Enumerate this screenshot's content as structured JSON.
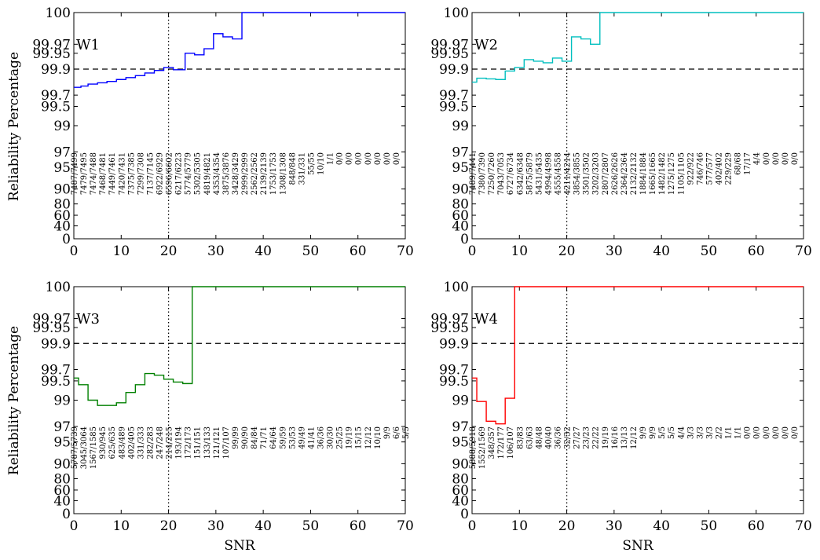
{
  "figure": {
    "ylabel": "Reliability Percentage",
    "xlabel": "SNR",
    "reference_line_y": 99.9,
    "reference_line_x": 20,
    "reference_line_style": "dashed (y), dotted (x)"
  },
  "chart_data": [
    {
      "type": "line",
      "label": "W1",
      "color": "#0000ff",
      "xlim": [
        0,
        70
      ],
      "ylim": [
        0,
        100
      ],
      "y_scale": "reliability (non-linear)",
      "y_ticks": [
        "0",
        "40",
        "60",
        "80",
        "90",
        "95",
        "97",
        "99",
        "99.5",
        "99.7",
        "99.9",
        "99.95",
        "99.97",
        "100"
      ],
      "x_ticks": [
        "0",
        "10",
        "20",
        "30",
        "40",
        "50",
        "60",
        "70"
      ],
      "x": [
        0,
        1.5,
        3,
        5,
        7,
        9,
        11,
        13,
        15,
        17,
        19,
        21,
        23.5,
        25.5,
        27.5,
        29.5,
        31.5,
        33.5,
        35.5,
        70
      ],
      "y": [
        99.76,
        99.77,
        99.785,
        99.795,
        99.805,
        99.82,
        99.835,
        99.85,
        99.87,
        99.89,
        99.905,
        99.895,
        99.95,
        99.945,
        99.96,
        99.98,
        99.977,
        99.975,
        100,
        100
      ],
      "annotations": [
        "7487/7499",
        "7479/7495",
        "7474/7488",
        "7468/7481",
        "7449/7461",
        "7420/7431",
        "7375/7385",
        "7299/7308",
        "7137/7145",
        "6922/6929",
        "6596/6602",
        "6217/6223",
        "5774/5779",
        "5302/5305",
        "4819/4821",
        "4353/4354",
        "3875/3876",
        "3428/3429",
        "2999/2999",
        "2562/2562",
        "2139/2139",
        "1753/1753",
        "1308/1308",
        "848/848",
        "331/331",
        "55/55",
        "10/10",
        "1/1",
        "0/0",
        "0/0",
        "0/0",
        "0/0",
        "0/0",
        "0/0",
        "0/0"
      ]
    },
    {
      "type": "line",
      "label": "W2",
      "color": "#00bfbf",
      "xlim": [
        0,
        70
      ],
      "ylim": [
        0,
        100
      ],
      "y_scale": "reliability (non-linear)",
      "y_ticks": [
        "0",
        "40",
        "60",
        "80",
        "90",
        "95",
        "97",
        "99",
        "99.5",
        "99.7",
        "99.9",
        "99.95",
        "99.97",
        "100"
      ],
      "x_ticks": [
        "0",
        "10",
        "20",
        "30",
        "40",
        "50",
        "60",
        "70"
      ],
      "x": [
        0,
        1,
        3,
        5,
        7,
        9,
        11,
        13,
        15,
        17,
        19,
        21,
        23,
        25,
        27,
        70
      ],
      "y": [
        99.8,
        99.83,
        99.825,
        99.82,
        99.885,
        99.905,
        99.93,
        99.925,
        99.92,
        99.935,
        99.925,
        99.977,
        99.975,
        99.97,
        100,
        100
      ],
      "annotations": [
        "7489/7441",
        "7380/7390",
        "7250/7260",
        "7043/7053",
        "6727/6734",
        "6342/6348",
        "5875/5879",
        "5431/5435",
        "4994/4998",
        "4555/4558",
        "4211/4214",
        "3854/3855",
        "3501/3502",
        "3202/3203",
        "2807/2807",
        "2626/2626",
        "2364/2364",
        "2132/2132",
        "1884/1884",
        "1665/1665",
        "1482/1482",
        "1275/1275",
        "1105/1105",
        "922/922",
        "746/746",
        "577/577",
        "402/402",
        "229/229",
        "68/68",
        "17/17",
        "4/4",
        "0/0",
        "0/0",
        "0/0",
        "0/0"
      ]
    },
    {
      "type": "line",
      "label": "W3",
      "color": "#008000",
      "xlim": [
        0,
        70
      ],
      "ylim": [
        0,
        100
      ],
      "y_scale": "reliability (non-linear)",
      "y_ticks": [
        "0",
        "40",
        "60",
        "80",
        "90",
        "95",
        "97",
        "99",
        "99.5",
        "99.7",
        "99.9",
        "99.95",
        "99.97",
        "100"
      ],
      "x_ticks": [
        "0",
        "10",
        "20",
        "30",
        "40",
        "50",
        "60",
        "70"
      ],
      "x": [
        0,
        1,
        3,
        5,
        7,
        9,
        11,
        13,
        15,
        17,
        19,
        21,
        23,
        25,
        70
      ],
      "y": [
        99.55,
        99.4,
        99.0,
        98.6,
        98.6,
        98.8,
        99.2,
        99.4,
        99.63,
        99.6,
        99.53,
        99.47,
        99.43,
        100,
        100
      ],
      "annotations": [
        "5787/5739",
        "3045/3064",
        "1567/1585",
        "930/945",
        "625/635",
        "483/489",
        "402/405",
        "331/333",
        "282/283",
        "247/248",
        "214/215",
        "193/194",
        "172/173",
        "151/151",
        "133/133",
        "121/121",
        "107/107",
        "99/99",
        "90/90",
        "84/84",
        "71/71",
        "64/64",
        "59/59",
        "53/53",
        "49/49",
        "41/41",
        "36/36",
        "30/30",
        "25/25",
        "19/19",
        "15/15",
        "12/12",
        "10/10",
        "9/9",
        "6/6",
        "5/5"
      ]
    },
    {
      "type": "line",
      "label": "W4",
      "color": "#ff0000",
      "xlim": [
        0,
        70
      ],
      "ylim": [
        0,
        100
      ],
      "y_scale": "reliability (non-linear)",
      "y_ticks": [
        "0",
        "40",
        "60",
        "80",
        "90",
        "95",
        "97",
        "99",
        "99.5",
        "99.7",
        "99.9",
        "99.95",
        "99.97",
        "100"
      ],
      "x_ticks": [
        "0",
        "10",
        "20",
        "30",
        "40",
        "50",
        "60",
        "70"
      ],
      "x": [
        0,
        1,
        3,
        5,
        7,
        9,
        70
      ],
      "y": [
        99.55,
        98.9,
        97.4,
        97.2,
        99.05,
        100,
        100
      ],
      "annotations": [
        "5888/5918",
        "1552/1569",
        "348/357",
        "172/177",
        "106/107",
        "83/83",
        "63/63",
        "48/48",
        "40/40",
        "36/36",
        "32/32",
        "27/27",
        "23/23",
        "22/22",
        "19/19",
        "16/16",
        "13/13",
        "12/12",
        "9/9",
        "9/9",
        "5/5",
        "5/5",
        "4/4",
        "3/3",
        "3/3",
        "3/3",
        "2/2",
        "1/1",
        "1/1",
        "0/0",
        "0/0",
        "0/0",
        "0/0",
        "0/0",
        "0/0"
      ]
    }
  ]
}
